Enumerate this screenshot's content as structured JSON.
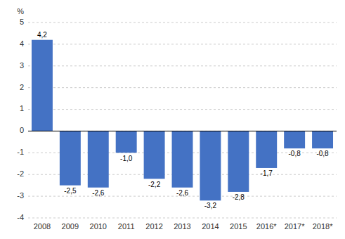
{
  "chart_data": {
    "type": "bar",
    "ylabel": "%",
    "categories": [
      "2008",
      "2009",
      "2010",
      "2011",
      "2012",
      "2013",
      "2014",
      "2015",
      "2016*",
      "2017*",
      "2018*"
    ],
    "values": [
      4.2,
      -2.5,
      -2.6,
      -1.0,
      -2.2,
      -2.6,
      -3.2,
      -2.8,
      -1.7,
      -0.8,
      -0.8
    ],
    "value_labels": [
      "4,2",
      "-2,5",
      "-2,6",
      "-1,0",
      "-2,2",
      "-2,6",
      "-3,2",
      "-2,8",
      "-1,7",
      "-0,8",
      "-0,8"
    ],
    "data_labels": true,
    "color": "#4472C4",
    "ylim": [
      -4,
      5
    ],
    "yticks": [
      -4,
      -3,
      -2,
      -1,
      0,
      1,
      2,
      3,
      4,
      5
    ],
    "grid": true
  }
}
